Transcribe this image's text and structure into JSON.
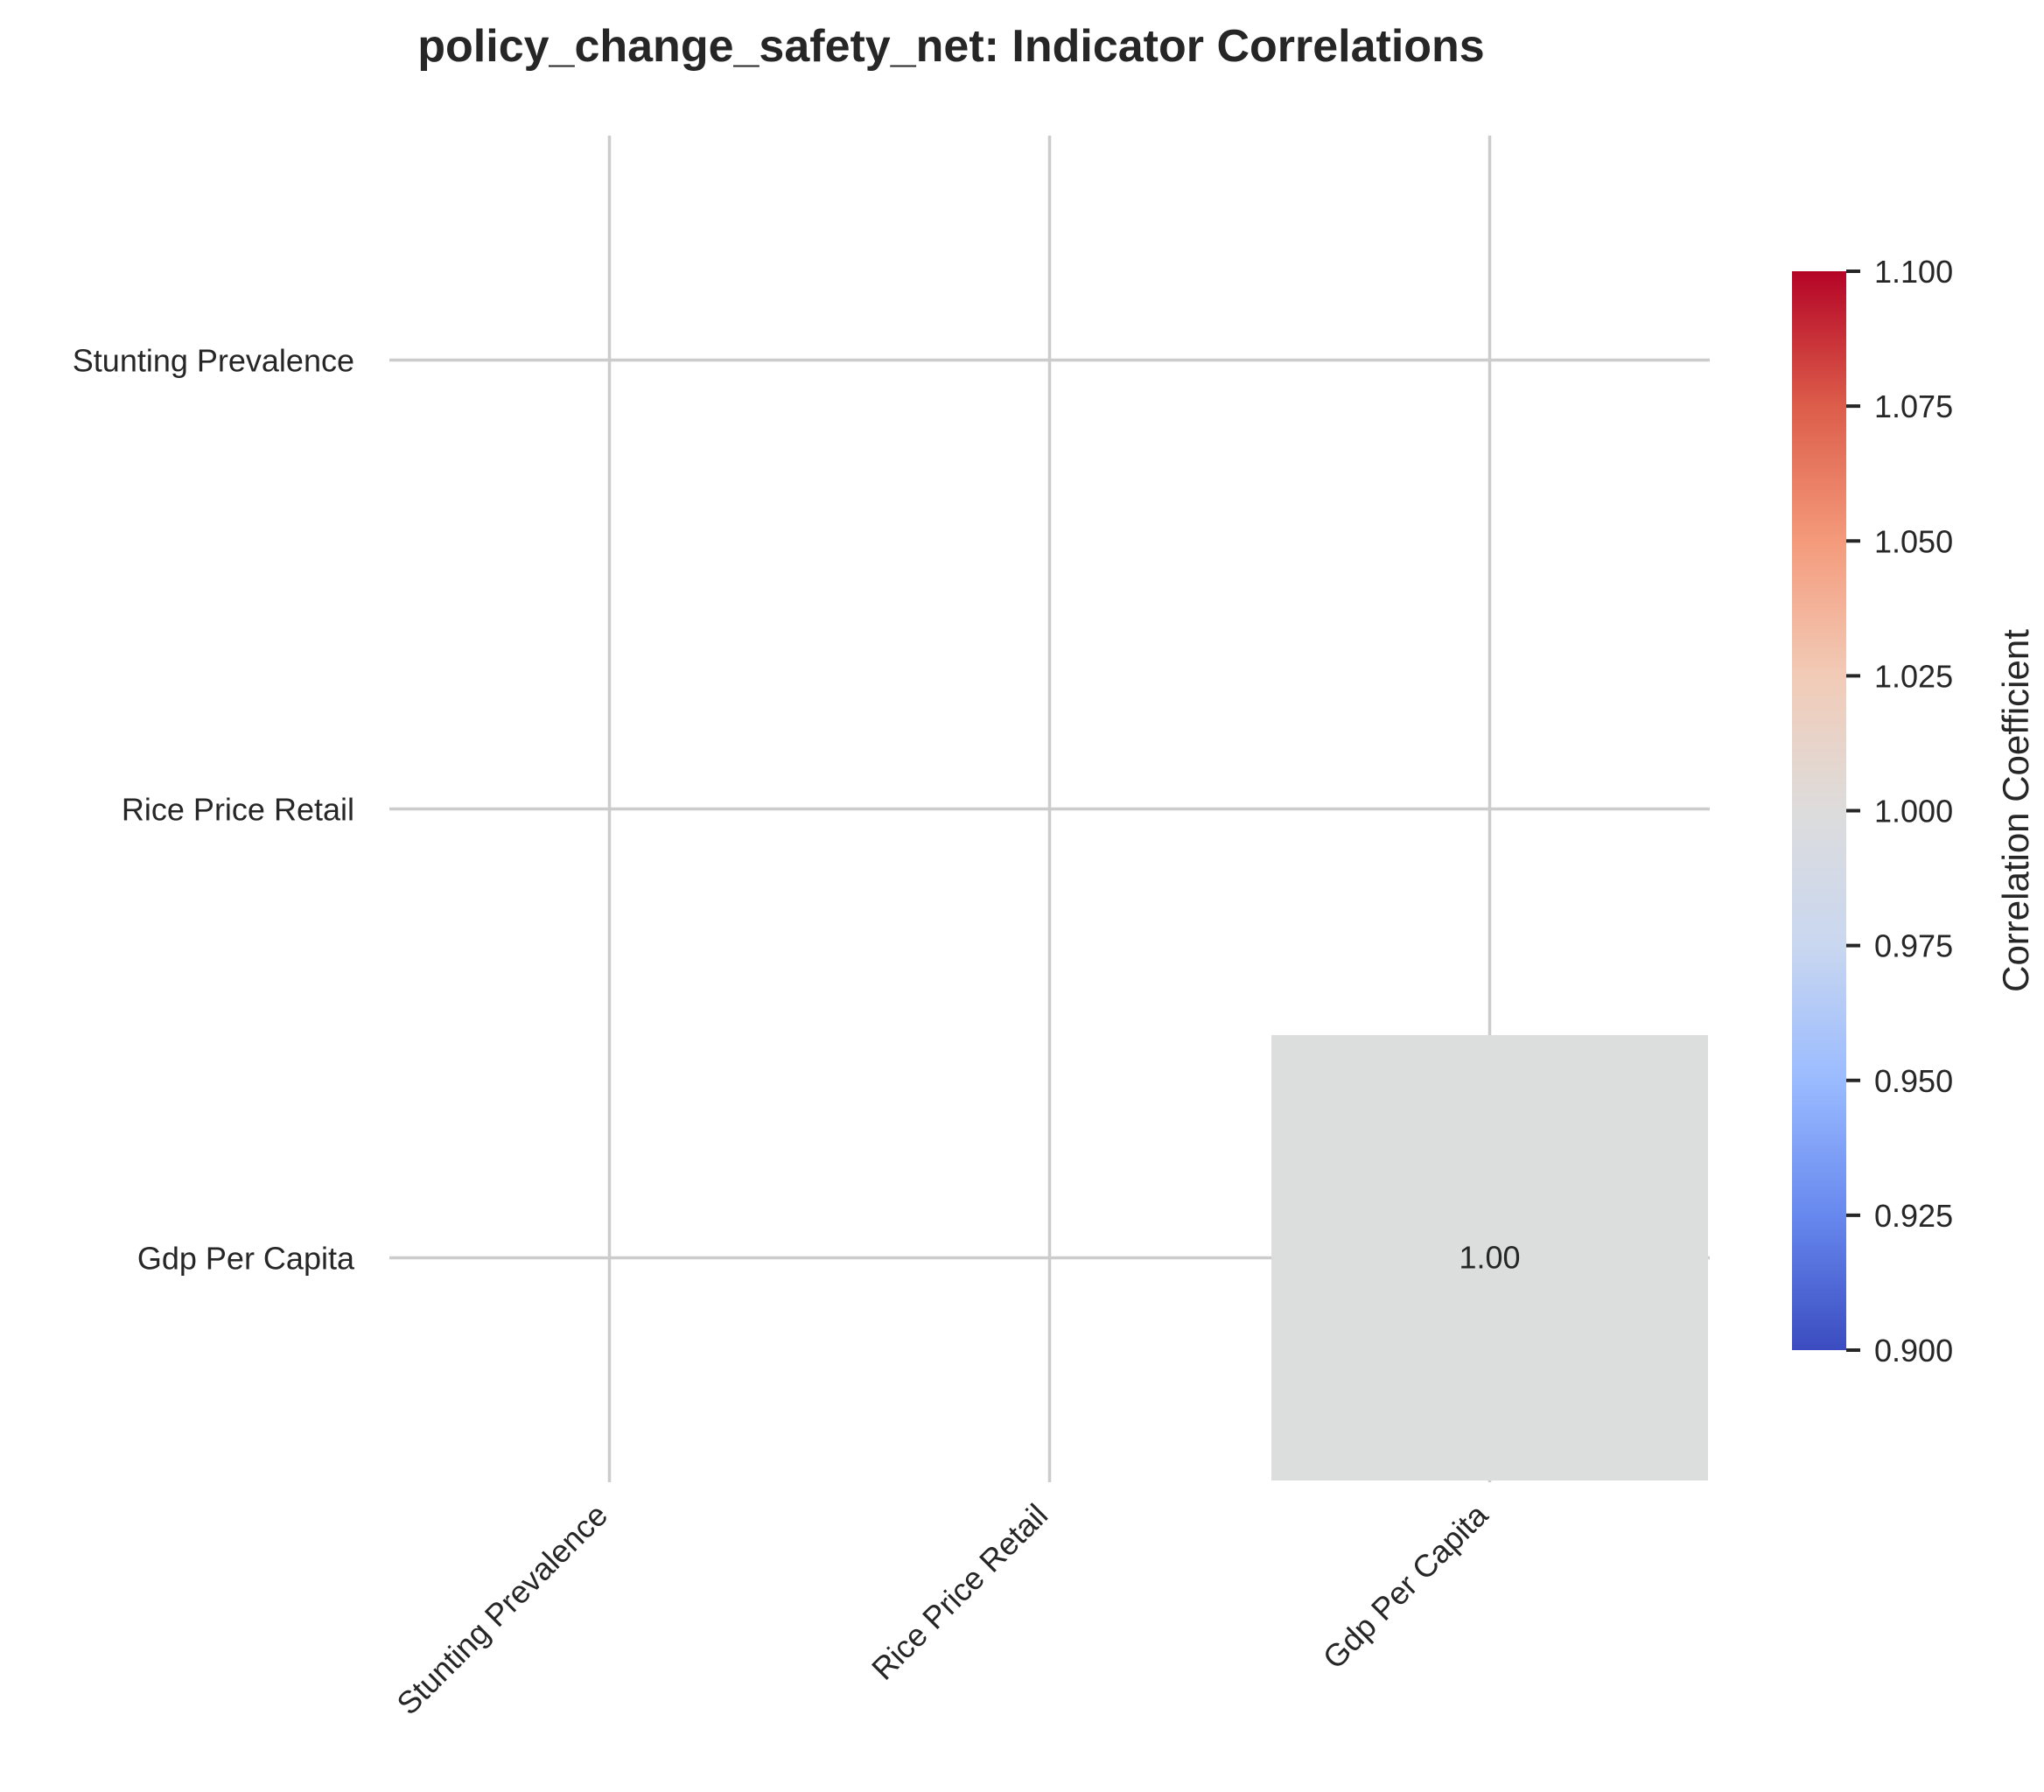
{
  "chart_data": {
    "type": "heatmap",
    "title": "policy_change_safety_net: Indicator Correlations",
    "row_labels": [
      "Stunting Prevalence",
      "Rice Price Retail",
      "Gdp Per Capita"
    ],
    "col_labels": [
      "Stunting Prevalence",
      "Rice Price Retail",
      "Gdp Per Capita"
    ],
    "values": [
      [
        null,
        null,
        null
      ],
      [
        null,
        null,
        null
      ],
      [
        null,
        null,
        1.0
      ]
    ],
    "annotations": [
      [
        null,
        null,
        null
      ],
      [
        null,
        null,
        null
      ],
      [
        null,
        null,
        "1.00"
      ]
    ],
    "colorbar": {
      "label": "Correlation Coefficient",
      "vmin": 0.9,
      "vmax": 1.1,
      "ticks": [
        "0.900",
        "0.925",
        "0.950",
        "0.975",
        "1.000",
        "1.025",
        "1.050",
        "1.075",
        "1.100"
      ],
      "colormap": "coolwarm",
      "colors": [
        "#3b4cc0",
        "#6788ee",
        "#9abbff",
        "#c9d7f0",
        "#dddcdc",
        "#f2cbb7",
        "#f49a7b",
        "#dc5d4a",
        "#b40426"
      ]
    },
    "grid": true,
    "cell_color_at_1": "#dcdddd"
  }
}
